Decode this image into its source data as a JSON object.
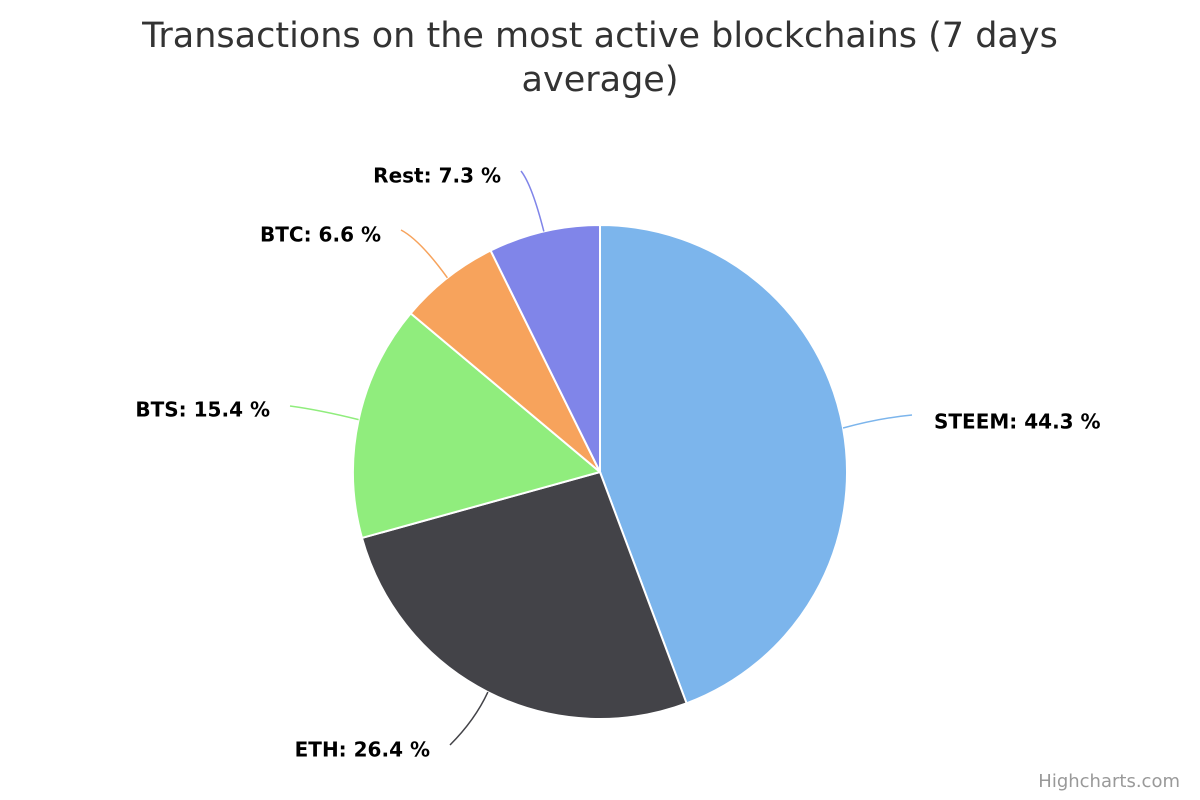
{
  "chart_data": {
    "type": "pie",
    "title": "Transactions on the most active blockchains (7 days average)",
    "slices": [
      {
        "name": "STEEM",
        "value": 44.3,
        "label": "STEEM: 44.3 %",
        "color": "#7cb5ec"
      },
      {
        "name": "ETH",
        "value": 26.4,
        "label": "ETH: 26.4 %",
        "color": "#434348"
      },
      {
        "name": "BTS",
        "value": 15.4,
        "label": "BTS: 15.4 %",
        "color": "#90ed7d"
      },
      {
        "name": "BTC",
        "value": 6.6,
        "label": "BTC: 6.6 %",
        "color": "#f7a35c"
      },
      {
        "name": "Rest",
        "value": 7.3,
        "label": "Rest: 7.3 %",
        "color": "#8085e9"
      }
    ],
    "legend": "none"
  },
  "credits": "Highcharts.com"
}
